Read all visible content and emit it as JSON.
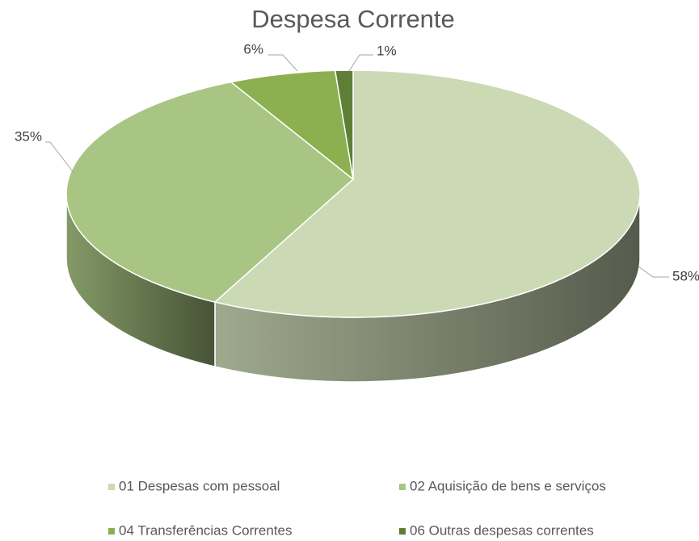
{
  "chart_data": {
    "type": "pie3d",
    "title": "Despesa Corrente",
    "categories": [
      "01 Despesas com pessoal",
      "02 Aquisição de bens e serviços",
      "04 Transferências Correntes",
      "06 Outras despesas correntes"
    ],
    "values": [
      58,
      35,
      6,
      1
    ],
    "value_labels": [
      "58%",
      "35%",
      "6%",
      "1%"
    ],
    "colors": [
      "#ccd9b5",
      "#a9c584",
      "#8cb050",
      "#5f7f36"
    ],
    "legend": "bottom"
  }
}
